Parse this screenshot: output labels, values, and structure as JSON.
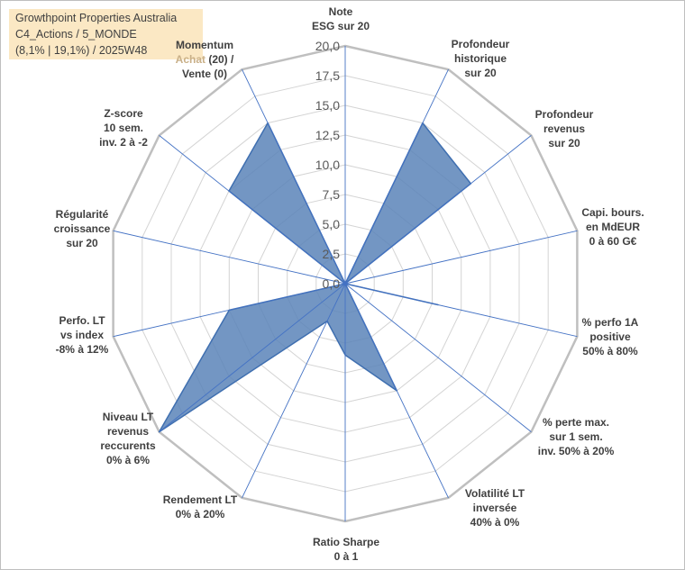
{
  "title_box": {
    "line1": "Growthpoint Properties Australia",
    "line2": "C4_Actions / 5_MONDE",
    "line3": "(8,1% | 19,1%) / 2025W48",
    "background": "#fbe8c4"
  },
  "colors": {
    "fill": "#5b84b8",
    "stroke": "#3f6fb0",
    "grid": "#d4d4d4",
    "outer_ring": "#bfbfbf",
    "spoke": "#4472c4",
    "highlight_text": "#c9b088"
  },
  "chart_data": {
    "type": "radar",
    "rmin": 0,
    "rmax": 20,
    "tick_step": 2.5,
    "tick_labels": [
      "0,0",
      "2,5",
      "5,0",
      "7,5",
      "10,0",
      "12,5",
      "15,0",
      "17,5",
      "20,0"
    ],
    "axes": [
      {
        "lines": [
          "Note",
          "ESG sur 20"
        ]
      },
      {
        "lines": [
          "Profondeur",
          "historique",
          "sur 20"
        ]
      },
      {
        "lines": [
          "Profondeur",
          "revenus",
          "sur 20"
        ]
      },
      {
        "lines": [
          "Capi. bours.",
          "en MdEUR",
          "0 à 60 G€"
        ]
      },
      {
        "lines": [
          "% perfo 1A",
          "positive",
          "50% à 80%"
        ]
      },
      {
        "lines": [
          "% perte max.",
          "sur 1 sem.",
          "inv. 50% à 20%"
        ]
      },
      {
        "lines": [
          "Volatilité LT",
          "inversée",
          "40% à 0%"
        ]
      },
      {
        "lines": [
          "Ratio Sharpe",
          "0 à 1"
        ]
      },
      {
        "lines": [
          "Rendement LT",
          "0% à 20%"
        ]
      },
      {
        "lines": [
          "Niveau LT",
          "revenus",
          "reccurents",
          "0% à 6%"
        ]
      },
      {
        "lines": [
          "Perfo. LT",
          "vs index",
          "-8% à 12%"
        ]
      },
      {
        "lines": [
          "Régularité",
          "croissance",
          "sur 20"
        ]
      },
      {
        "lines": [
          "Z-score",
          "10 sem.",
          "inv. 2 à -2"
        ]
      },
      {
        "lines": [
          "Momentum",
          "Achat (20) /",
          "Vente (0)"
        ],
        "highlight_words": [
          "Achat"
        ]
      }
    ],
    "series": [
      {
        "name": "Growthpoint Properties Australia",
        "values": [
          0,
          15,
          13.5,
          0,
          8,
          0,
          10,
          6,
          3.5,
          20,
          10,
          0,
          12.5,
          15
        ]
      }
    ]
  }
}
